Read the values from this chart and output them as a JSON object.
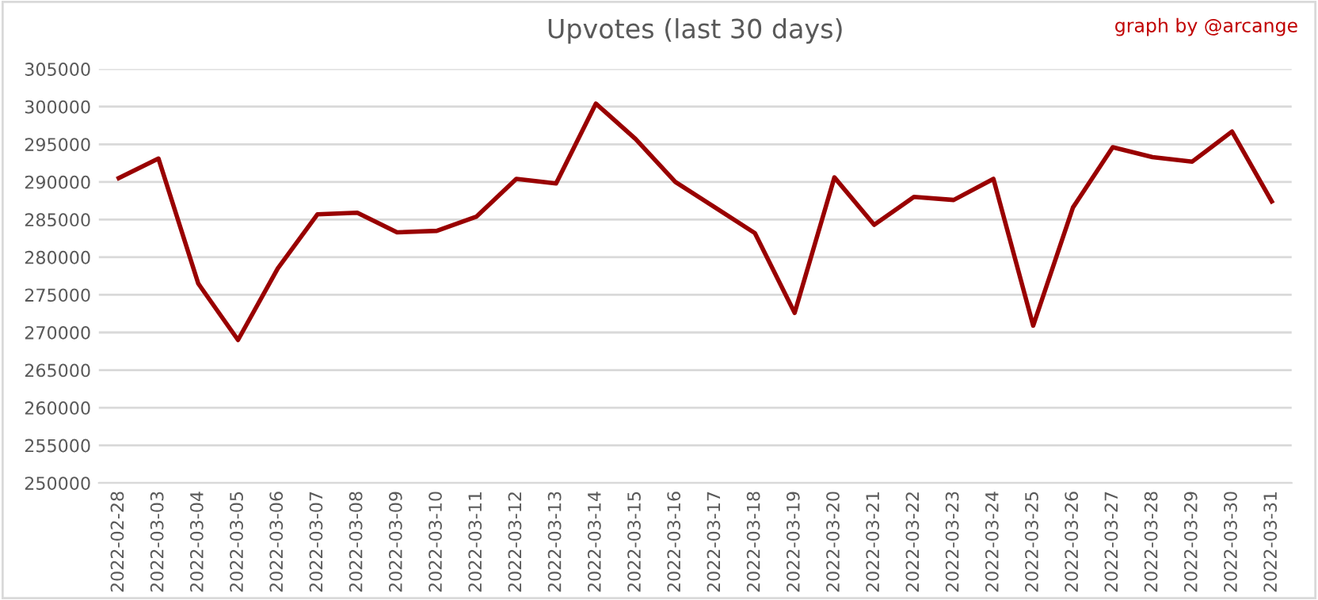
{
  "chart_data": {
    "type": "line",
    "title": "Upvotes (last 30 days)",
    "annotations": [
      "graph by @arcange"
    ],
    "categories": [
      "2022-02-28",
      "2022-03-03",
      "2022-03-04",
      "2022-03-05",
      "2022-03-06",
      "2022-03-07",
      "2022-03-08",
      "2022-03-09",
      "2022-03-10",
      "2022-03-11",
      "2022-03-12",
      "2022-03-13",
      "2022-03-14",
      "2022-03-15",
      "2022-03-16",
      "2022-03-17",
      "2022-03-18",
      "2022-03-19",
      "2022-03-20",
      "2022-03-21",
      "2022-03-22",
      "2022-03-23",
      "2022-03-24",
      "2022-03-25",
      "2022-03-26",
      "2022-03-27",
      "2022-03-28",
      "2022-03-29",
      "2022-03-30",
      "2022-03-31"
    ],
    "series": [
      {
        "color": "#990000",
        "values": [
          290500,
          293100,
          276500,
          269000,
          278500,
          285700,
          285900,
          283300,
          283500,
          285400,
          290400,
          289800,
          300400,
          295700,
          290000,
          286600,
          283200,
          272600,
          290600,
          284300,
          288000,
          287600,
          290400,
          270900,
          286600,
          294600,
          293300,
          292700,
          296700,
          287400
        ]
      }
    ],
    "ylim": [
      250000,
      305000
    ],
    "yticks": [
      250000,
      255000,
      260000,
      265000,
      270000,
      275000,
      280000,
      285000,
      290000,
      295000,
      300000,
      305000
    ],
    "grid": "y",
    "marker": "none",
    "line_style": "solid"
  }
}
